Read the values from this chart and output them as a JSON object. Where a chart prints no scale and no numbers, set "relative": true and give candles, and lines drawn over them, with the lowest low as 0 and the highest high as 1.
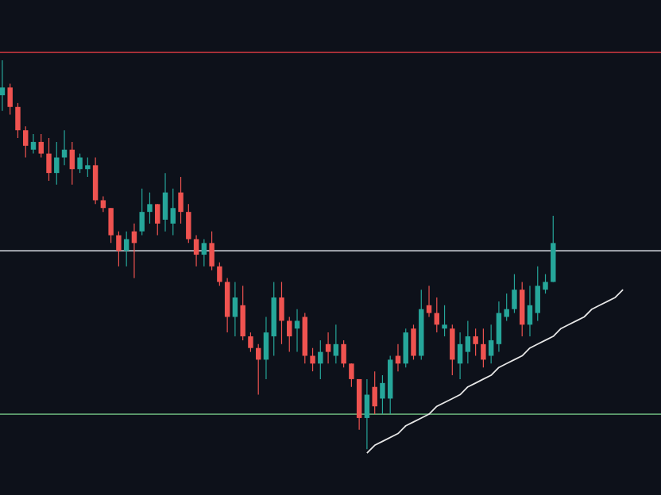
{
  "chart_data": {
    "type": "candlestick",
    "relative": true,
    "categories": [
      null,
      null,
      null,
      null,
      null,
      null,
      null,
      null,
      null,
      null,
      null,
      null,
      null,
      null,
      null,
      null,
      null,
      null,
      null,
      null,
      null,
      null,
      null,
      null,
      null,
      null,
      null,
      null,
      null,
      null,
      null,
      null,
      null,
      null,
      null,
      null,
      null,
      null,
      null,
      null,
      null,
      null,
      null,
      null,
      null,
      null,
      null,
      null,
      null,
      null,
      null,
      null,
      null,
      null,
      null,
      null,
      null,
      null,
      null,
      null,
      null,
      null,
      null,
      null,
      null,
      null,
      null,
      null,
      null,
      null,
      null,
      null,
      null,
      null,
      null,
      null,
      null,
      null,
      null,
      null,
      null
    ],
    "ohlc": [
      [
        0.91,
        1.0,
        0.87,
        0.93
      ],
      [
        0.93,
        0.94,
        0.86,
        0.88
      ],
      [
        0.88,
        0.89,
        0.8,
        0.82
      ],
      [
        0.82,
        0.83,
        0.75,
        0.78
      ],
      [
        0.77,
        0.81,
        0.76,
        0.79
      ],
      [
        0.79,
        0.81,
        0.75,
        0.76
      ],
      [
        0.76,
        0.8,
        0.69,
        0.71
      ],
      [
        0.71,
        0.79,
        0.68,
        0.75
      ],
      [
        0.75,
        0.82,
        0.73,
        0.77
      ],
      [
        0.77,
        0.79,
        0.68,
        0.72
      ],
      [
        0.72,
        0.76,
        0.71,
        0.75
      ],
      [
        0.72,
        0.75,
        0.7,
        0.73
      ],
      [
        0.73,
        0.75,
        0.63,
        0.64
      ],
      [
        0.64,
        0.65,
        0.61,
        0.62
      ],
      [
        0.62,
        0.62,
        0.53,
        0.55
      ],
      [
        0.55,
        0.56,
        0.47,
        0.51
      ],
      [
        0.51,
        0.56,
        0.47,
        0.54
      ],
      [
        0.56,
        0.58,
        0.44,
        0.53
      ],
      [
        0.56,
        0.67,
        0.55,
        0.61
      ],
      [
        0.61,
        0.66,
        0.58,
        0.63
      ],
      [
        0.63,
        0.63,
        0.55,
        0.58
      ],
      [
        0.59,
        0.71,
        0.56,
        0.66
      ],
      [
        0.58,
        0.67,
        0.55,
        0.62
      ],
      [
        0.66,
        0.7,
        0.58,
        0.61
      ],
      [
        0.61,
        0.63,
        0.53,
        0.54
      ],
      [
        0.54,
        0.55,
        0.47,
        0.5
      ],
      [
        0.5,
        0.54,
        0.47,
        0.53
      ],
      [
        0.53,
        0.56,
        0.46,
        0.47
      ],
      [
        0.47,
        0.48,
        0.42,
        0.43
      ],
      [
        0.43,
        0.44,
        0.3,
        0.34
      ],
      [
        0.34,
        0.43,
        0.29,
        0.39
      ],
      [
        0.37,
        0.42,
        0.28,
        0.29
      ],
      [
        0.29,
        0.3,
        0.25,
        0.26
      ],
      [
        0.26,
        0.27,
        0.14,
        0.23
      ],
      [
        0.23,
        0.34,
        0.18,
        0.3
      ],
      [
        0.29,
        0.43,
        0.24,
        0.39
      ],
      [
        0.39,
        0.43,
        0.27,
        0.33
      ],
      [
        0.33,
        0.34,
        0.25,
        0.29
      ],
      [
        0.31,
        0.36,
        0.25,
        0.33
      ],
      [
        0.34,
        0.35,
        0.22,
        0.24
      ],
      [
        0.24,
        0.26,
        0.2,
        0.22
      ],
      [
        0.22,
        0.28,
        0.18,
        0.25
      ],
      [
        0.27,
        0.3,
        0.22,
        0.25
      ],
      [
        0.24,
        0.32,
        0.22,
        0.27
      ],
      [
        0.27,
        0.28,
        0.21,
        0.22
      ],
      [
        0.22,
        0.22,
        0.16,
        0.18
      ],
      [
        0.18,
        0.18,
        0.05,
        0.08
      ],
      [
        0.08,
        0.18,
        0.0,
        0.14
      ],
      [
        0.16,
        0.2,
        0.09,
        0.11
      ],
      [
        0.13,
        0.19,
        0.09,
        0.17
      ],
      [
        0.13,
        0.24,
        0.09,
        0.23
      ],
      [
        0.24,
        0.27,
        0.2,
        0.22
      ],
      [
        0.22,
        0.31,
        0.21,
        0.3
      ],
      [
        0.31,
        0.32,
        0.23,
        0.24
      ],
      [
        0.24,
        0.41,
        0.23,
        0.36
      ],
      [
        0.37,
        0.42,
        0.34,
        0.35
      ],
      [
        0.35,
        0.39,
        0.3,
        0.32
      ],
      [
        0.31,
        0.37,
        0.29,
        0.32
      ],
      [
        0.31,
        0.32,
        0.19,
        0.23
      ],
      [
        0.22,
        0.3,
        0.18,
        0.27
      ],
      [
        0.25,
        0.33,
        0.22,
        0.29
      ],
      [
        0.29,
        0.31,
        0.24,
        0.27
      ],
      [
        0.27,
        0.31,
        0.21,
        0.23
      ],
      [
        0.24,
        0.32,
        0.22,
        0.28
      ],
      [
        0.27,
        0.38,
        0.25,
        0.35
      ],
      [
        0.34,
        0.4,
        0.33,
        0.36
      ],
      [
        0.36,
        0.45,
        0.35,
        0.41
      ],
      [
        0.41,
        0.43,
        0.29,
        0.32
      ],
      [
        0.32,
        0.42,
        0.29,
        0.37
      ],
      [
        0.35,
        0.47,
        0.33,
        0.42
      ],
      [
        0.41,
        0.45,
        0.4,
        0.43
      ],
      [
        0.43,
        0.6,
        0.43,
        0.53
      ],
      null,
      null,
      null,
      null,
      null,
      null,
      null,
      null,
      null
    ],
    "colors": [
      "#26a69a",
      "#ef5350",
      "#ef5350",
      "#ef5350",
      "#26a69a",
      "#ef5350",
      "#ef5350",
      "#26a69a",
      "#26a69a",
      "#ef5350",
      "#26a69a",
      "#26a69a",
      "#ef5350",
      "#ef5350",
      "#ef5350",
      "#ef5350",
      "#26a69a",
      "#ef5350",
      "#26a69a",
      "#26a69a",
      "#ef5350",
      "#26a69a",
      "#26a69a",
      "#ef5350",
      "#ef5350",
      "#ef5350",
      "#26a69a",
      "#ef5350",
      "#ef5350",
      "#ef5350",
      "#26a69a",
      "#ef5350",
      "#ef5350",
      "#ef5350",
      "#26a69a",
      "#26a69a",
      "#ef5350",
      "#ef5350",
      "#26a69a",
      "#ef5350",
      "#ef5350",
      "#26a69a",
      "#ef5350",
      "#26a69a",
      "#ef5350",
      "#ef5350",
      "#ef5350",
      "#26a69a",
      "#ef5350",
      "#26a69a",
      "#26a69a",
      "#ef5350",
      "#26a69a",
      "#ef5350",
      "#26a69a",
      "#ef5350",
      "#ef5350",
      "#26a69a",
      "#ef5350",
      "#26a69a",
      "#26a69a",
      "#ef5350",
      "#ef5350",
      "#26a69a",
      "#26a69a",
      "#26a69a",
      "#26a69a",
      "#ef5350",
      "#26a69a",
      "#26a69a",
      "#26a69a",
      "#26a69a",
      null,
      null,
      null,
      null,
      null,
      null,
      null,
      null,
      null
    ],
    "series": [
      {
        "type": "line",
        "color": "#e6e6e6",
        "values": [
          null,
          null,
          null,
          null,
          null,
          null,
          null,
          null,
          null,
          null,
          null,
          null,
          null,
          null,
          null,
          null,
          null,
          null,
          null,
          null,
          null,
          null,
          null,
          null,
          null,
          null,
          null,
          null,
          null,
          null,
          null,
          null,
          null,
          null,
          null,
          null,
          null,
          null,
          null,
          null,
          null,
          null,
          null,
          null,
          null,
          null,
          null,
          -0.01,
          0.01,
          0.02,
          0.03,
          0.04,
          0.06,
          0.07,
          0.08,
          0.09,
          0.11,
          0.12,
          0.13,
          0.14,
          0.16,
          0.17,
          0.18,
          0.19,
          0.21,
          0.22,
          0.23,
          0.24,
          0.26,
          0.27,
          0.28,
          0.29,
          0.31,
          0.32,
          0.33,
          0.34,
          0.36,
          0.37,
          0.38,
          0.39,
          0.41
        ]
      }
    ],
    "ref_lines": [
      {
        "axis": "y",
        "value": 1.02,
        "color": "#b2323a"
      },
      {
        "axis": "y",
        "value": 0.51,
        "color": "#b8bcc4"
      },
      {
        "axis": "y",
        "value": 0.09,
        "color": "#5e9e6e"
      }
    ]
  }
}
